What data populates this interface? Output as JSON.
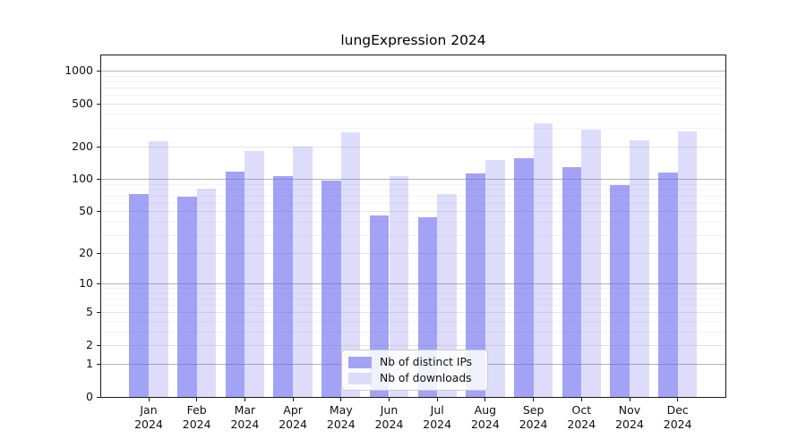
{
  "chart_data": {
    "type": "bar",
    "title": "lungExpression 2024",
    "categories": [
      "Jan 2024",
      "Feb 2024",
      "Mar 2024",
      "Apr 2024",
      "May 2024",
      "Jun 2024",
      "Jul 2024",
      "Aug 2024",
      "Sep 2024",
      "Oct 2024",
      "Nov 2024",
      "Dec 2024"
    ],
    "series": [
      {
        "name": "Nb of distinct IPs",
        "values": [
          72,
          68,
          118,
          107,
          96,
          46,
          44,
          113,
          155,
          129,
          88,
          115
        ],
        "fill": "rgba(102,102,238,0.60)",
        "legend_color": "#a3a3f3"
      },
      {
        "name": "Nb of downloads",
        "values": [
          223,
          82,
          181,
          198,
          269,
          106,
          72,
          149,
          325,
          286,
          227,
          274
        ],
        "fill": "rgba(102,102,238,0.22)",
        "legend_color": "#dcdcf9"
      }
    ],
    "yscale": "log(v+1)",
    "yticks": [
      1000,
      500,
      200,
      100,
      50,
      20,
      10,
      5,
      2,
      1,
      0
    ],
    "ylim": [
      0,
      1380
    ],
    "grid": true,
    "legend_position": "lower center"
  },
  "colors": {
    "bar_base": "#6666ee",
    "grid_major": "#b3b3b3",
    "grid_minor": "#e4e4e4",
    "grid_subminor": "#f3f3f3",
    "spine": "#1a1a1a",
    "text": "#111111"
  }
}
